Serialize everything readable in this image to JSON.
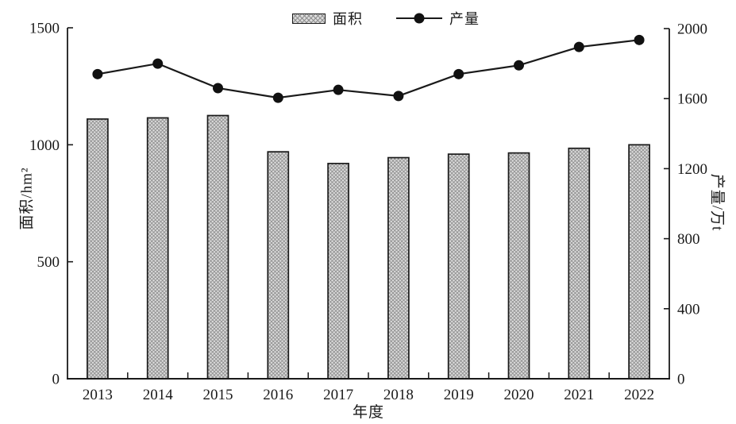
{
  "chart_data": {
    "type": "bar",
    "subtype": "dual-axis-bar-line-combo",
    "title": "",
    "categories": [
      "2013",
      "2014",
      "2015",
      "2016",
      "2017",
      "2018",
      "2019",
      "2020",
      "2021",
      "2022"
    ],
    "series": [
      {
        "name": "面积",
        "type": "bar",
        "axis": "left",
        "values": [
          1110,
          1115,
          1125,
          970,
          920,
          945,
          960,
          965,
          985,
          1000
        ]
      },
      {
        "name": "产量",
        "type": "line",
        "axis": "right",
        "values": [
          1740,
          1800,
          1660,
          1605,
          1650,
          1615,
          1740,
          1790,
          1895,
          1935
        ]
      }
    ],
    "x_axis": {
      "label": "年度"
    },
    "left_axis": {
      "label": "面积/hm²",
      "min": 0,
      "max": 1500,
      "ticks": [
        0,
        500,
        1000,
        1500
      ]
    },
    "right_axis": {
      "label": "产量/万t",
      "min": 0,
      "max": 2000,
      "ticks": [
        0,
        400,
        800,
        1200,
        1600,
        2000
      ]
    },
    "legend_position": "top-center",
    "grid": "off",
    "colors": {
      "bar_fill": "#dcdcdc",
      "bar_hatch": "#8f8f8f",
      "bar_stroke": "#1a1a1a",
      "line": "#1a1a1a",
      "marker": "#111111",
      "axis": "#1a1a1a",
      "text": "#1a1a1a",
      "background": "#ffffff"
    }
  }
}
